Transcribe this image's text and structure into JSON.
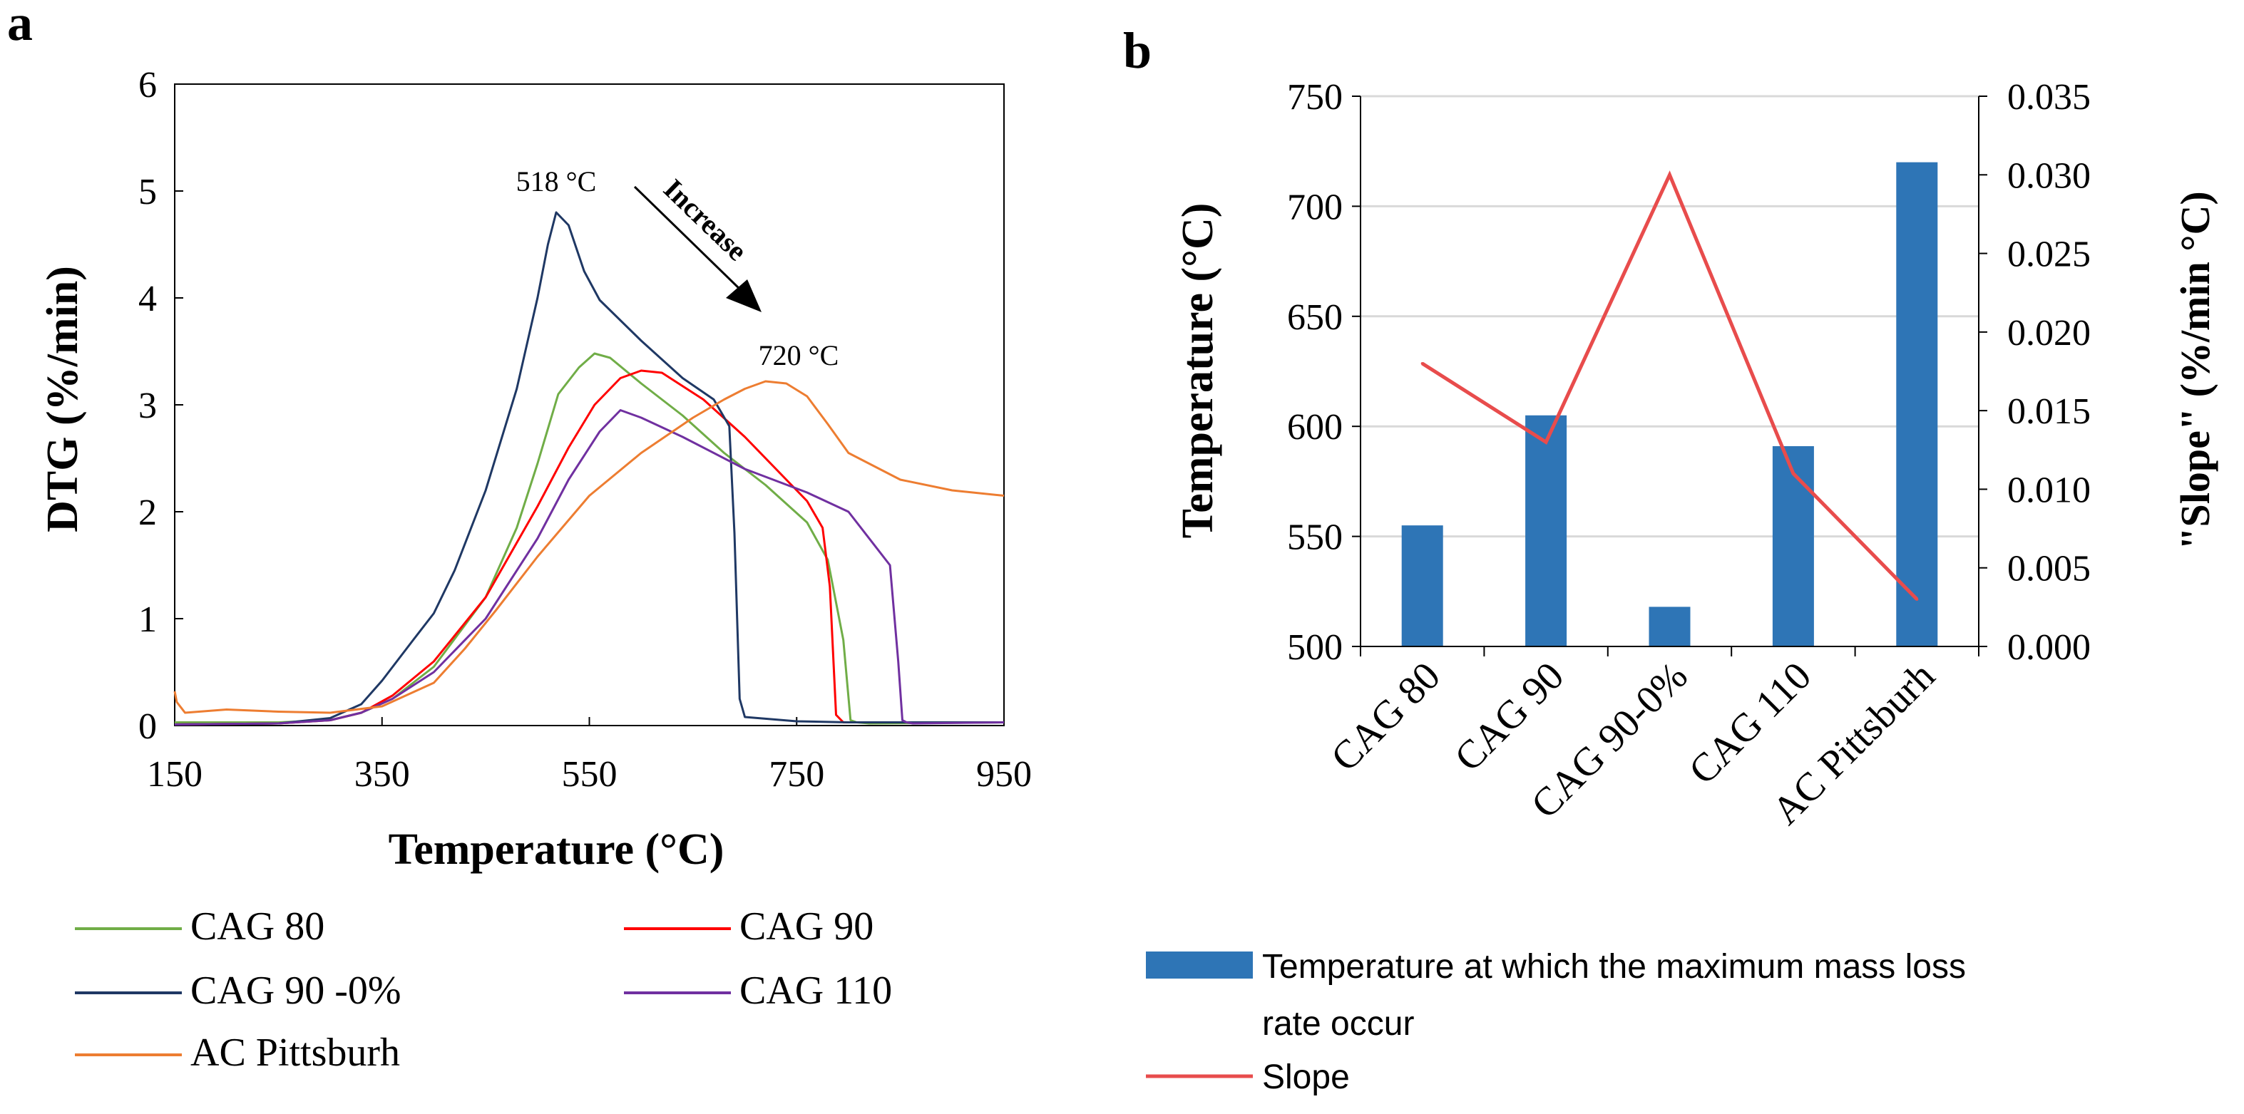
{
  "chart_data": [
    {
      "panel_label": "a",
      "type": "line",
      "xlabel": "Temperature  (°C)",
      "ylabel": "DTG (%/min)",
      "xlim": [
        150,
        950
      ],
      "ylim": [
        0,
        6
      ],
      "xticks": [
        "150",
        "350",
        "550",
        "750",
        "950"
      ],
      "yticks": [
        "0",
        "1",
        "2",
        "3",
        "4",
        "5",
        "6"
      ],
      "grid": false,
      "legend_position": "bottom",
      "annotations": {
        "peak_low": "518 °C",
        "peak_high": "720 °C",
        "arrow": "Increase"
      },
      "series": [
        {
          "name": "CAG 80",
          "color": "#70ad47",
          "x": [
            150,
            250,
            300,
            330,
            360,
            400,
            450,
            480,
            500,
            520,
            540,
            555,
            570,
            600,
            640,
            680,
            720,
            760,
            780,
            795,
            802,
            808,
            820,
            950
          ],
          "y": [
            0.03,
            0.03,
            0.05,
            0.12,
            0.25,
            0.55,
            1.2,
            1.85,
            2.45,
            3.1,
            3.35,
            3.48,
            3.44,
            3.2,
            2.9,
            2.55,
            2.25,
            1.9,
            1.55,
            0.8,
            0.05,
            0.03,
            0.02,
            0.03
          ]
        },
        {
          "name": "CAG 90",
          "color": "#ff0000",
          "x": [
            150,
            250,
            300,
            330,
            360,
            400,
            450,
            500,
            530,
            555,
            580,
            600,
            620,
            660,
            700,
            730,
            760,
            775,
            782,
            788,
            795,
            950
          ],
          "y": [
            0.01,
            0.02,
            0.05,
            0.12,
            0.28,
            0.6,
            1.2,
            2.05,
            2.6,
            3.0,
            3.25,
            3.32,
            3.3,
            3.05,
            2.7,
            2.4,
            2.1,
            1.85,
            1.3,
            0.1,
            0.03,
            0.03
          ]
        },
        {
          "name": "CAG 90 -0%",
          "color": "#1f3864",
          "x": [
            150,
            250,
            300,
            330,
            350,
            380,
            400,
            420,
            450,
            480,
            500,
            510,
            518,
            530,
            545,
            560,
            600,
            640,
            670,
            685,
            690,
            695,
            700,
            750,
            800,
            950
          ],
          "y": [
            0.01,
            0.02,
            0.07,
            0.2,
            0.42,
            0.8,
            1.05,
            1.45,
            2.2,
            3.15,
            4.0,
            4.5,
            4.8,
            4.68,
            4.25,
            3.98,
            3.6,
            3.25,
            3.05,
            2.8,
            1.8,
            0.25,
            0.08,
            0.04,
            0.03,
            0.03
          ]
        },
        {
          "name": "CAG 110",
          "color": "#7030a0",
          "x": [
            150,
            250,
            300,
            330,
            360,
            400,
            450,
            500,
            530,
            560,
            580,
            600,
            640,
            700,
            760,
            800,
            840,
            848,
            852,
            856,
            862,
            950
          ],
          "y": [
            0.01,
            0.02,
            0.05,
            0.12,
            0.25,
            0.5,
            1.0,
            1.75,
            2.3,
            2.75,
            2.95,
            2.88,
            2.7,
            2.4,
            2.18,
            2.0,
            1.5,
            0.6,
            0.05,
            0.03,
            0.02,
            0.03
          ]
        },
        {
          "name": "AC Pittsburh",
          "color": "#ed7d31",
          "x": [
            150,
            152,
            160,
            200,
            250,
            300,
            350,
            400,
            430,
            460,
            500,
            550,
            600,
            650,
            680,
            700,
            720,
            740,
            760,
            780,
            800,
            850,
            900,
            950
          ],
          "y": [
            0.32,
            0.22,
            0.12,
            0.15,
            0.13,
            0.12,
            0.18,
            0.4,
            0.72,
            1.08,
            1.58,
            2.15,
            2.55,
            2.88,
            3.05,
            3.15,
            3.22,
            3.2,
            3.08,
            2.82,
            2.55,
            2.3,
            2.2,
            2.15
          ]
        }
      ]
    },
    {
      "panel_label": "b",
      "type": "bar",
      "categories": [
        "CAG 80",
        "CAG 90",
        "CAG 90-0%",
        "CAG 110",
        "AC Pittsburh"
      ],
      "ylabel": "Temperature (°C)",
      "y2label": "\"Slope\" (%/min °C)",
      "ylim": [
        500,
        750
      ],
      "y2lim": [
        0,
        0.035
      ],
      "yticks": [
        "500",
        "550",
        "600",
        "650",
        "700",
        "750"
      ],
      "y2ticks": [
        "0.000",
        "0.005",
        "0.010",
        "0.015",
        "0.020",
        "0.025",
        "0.030",
        "0.035"
      ],
      "grid": true,
      "legend_position": "bottom",
      "series": [
        {
          "name": "Temperature at which the maximum mass loss rate occur",
          "kind": "bar",
          "axis": "left",
          "color": "#2e75b6",
          "values": [
            555,
            605,
            518,
            591,
            720
          ]
        },
        {
          "name": "Slope",
          "kind": "line",
          "axis": "right",
          "color": "#e84c4c",
          "values": [
            0.018,
            0.013,
            0.03,
            0.011,
            0.003
          ]
        }
      ],
      "legend_labels": {
        "bar_line1": "Temperature at which the maximum mass loss",
        "bar_line2": "rate occur",
        "line": "Slope"
      }
    }
  ]
}
